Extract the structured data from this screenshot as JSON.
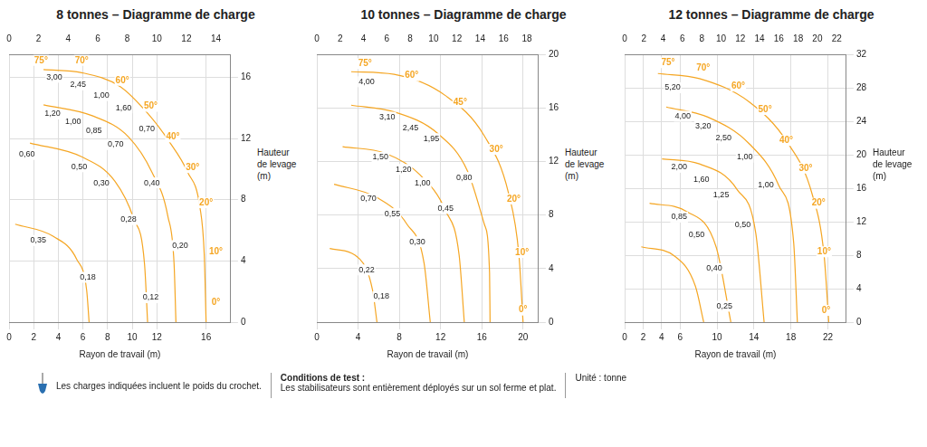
{
  "chart_data": [
    {
      "type": "line",
      "title": "8 tonnes – Diagramme de charge",
      "xlabel": "Rayon de travail (m)",
      "ylabel": "Hauteur de levage (m)",
      "xlim": [
        0,
        18
      ],
      "xticks": [
        0,
        2,
        4,
        6,
        8,
        10,
        12,
        16
      ],
      "x2lim": [
        0,
        15
      ],
      "x2ticks": [
        0,
        2,
        4,
        6,
        8,
        10,
        12,
        14
      ],
      "ylim": [
        0,
        17.5
      ],
      "yticks": [
        0,
        4,
        8,
        12,
        16
      ],
      "grid": true,
      "color": "#f5a623",
      "series": [
        {
          "x": [
            2.8,
            5.9,
            9.0,
            11.3,
            13.0,
            14.5,
            15.5,
            15.85,
            16
          ],
          "values": [
            16.5,
            16.3,
            15.4,
            13.6,
            11.8,
            9.8,
            7.5,
            4.4,
            0
          ]
        },
        {
          "x": [
            2.8,
            6.7,
            9.7,
            11.6,
            12.9,
            13.4,
            13.55
          ],
          "values": [
            14.2,
            13.5,
            12.1,
            9.8,
            6.9,
            3.8,
            0
          ]
        },
        {
          "x": [
            1.7,
            5.9,
            8.6,
            10.1,
            11.0,
            11.25
          ],
          "values": [
            11.7,
            10.8,
            9.2,
            6.8,
            3.8,
            0
          ]
        },
        {
          "x": [
            0.5,
            3.6,
            5.5,
            6.3,
            6.5
          ],
          "values": [
            6.4,
            5.6,
            4.1,
            2.1,
            0
          ]
        }
      ],
      "angles": {
        "x": [
          2.6,
          5.9,
          9.2,
          11.5,
          13.3,
          14.9,
          16.0,
          16.8,
          16.8
        ],
        "y": [
          17.1,
          17.1,
          15.8,
          14.1,
          12.1,
          10.1,
          7.8,
          4.6,
          1.3
        ],
        "values": [
          75,
          70,
          60,
          50,
          40,
          30,
          20,
          10,
          0
        ],
        "value_labels": [
          "75°",
          "70°",
          "60°",
          "50°",
          "40°",
          "30°",
          "20°",
          "10°",
          "0°"
        ]
      },
      "loads": {
        "x": [
          3.68,
          5.6,
          7.5,
          9.3,
          11.2,
          3.52,
          5.2,
          6.9,
          8.65,
          11.6,
          1.46,
          5.7,
          7.5,
          9.7,
          13.9,
          2.37,
          6.4,
          11.5
        ],
        "y": [
          16.0,
          15.5,
          14.8,
          14.0,
          12.6,
          13.6,
          13.1,
          12.5,
          11.6,
          9.1,
          10.95,
          10.15,
          9.1,
          6.7,
          5.0,
          5.33,
          2.93,
          1.6
        ],
        "values": [
          3,
          2.45,
          1,
          1.6,
          0.7,
          1.2,
          1,
          0.85,
          0.7,
          0.4,
          0.6,
          0.5,
          0.3,
          0.28,
          0.2,
          0.35,
          0.18,
          0.12
        ],
        "value_labels": [
          "3,00",
          "2,45",
          "1,00",
          "1,60",
          "0,70",
          "1,20",
          "1,00",
          "0,85",
          "0,70",
          "0,40",
          "0,60",
          "0,50",
          "0,30",
          "0,28",
          "0,20",
          "0,35",
          "0,18",
          "0,12"
        ]
      }
    },
    {
      "type": "line",
      "title": "10 tonnes – Diagramme de charge",
      "xlabel": "Rayon de travail (m)",
      "ylabel": "Hauteur de levage (m)",
      "xlim": [
        0,
        21.5
      ],
      "xticks": [
        0,
        4,
        8,
        12,
        16,
        20
      ],
      "x2lim": [
        0,
        19
      ],
      "x2ticks": [
        0,
        2,
        4,
        6,
        8,
        10,
        12,
        14,
        16,
        18
      ],
      "ylim": [
        0,
        20
      ],
      "yticks": [
        0,
        4,
        8,
        12,
        16,
        20
      ],
      "grid": true,
      "color": "#f5a623",
      "series": [
        {
          "x": [
            3.33,
            7.5,
            12.5,
            16.25,
            18.6,
            19.6,
            20
          ],
          "values": [
            18.7,
            18.5,
            16.9,
            13.9,
            9.6,
            5.0,
            0
          ]
        },
        {
          "x": [
            3.33,
            7.5,
            11.7,
            14.6,
            16.25,
            16.75,
            16.8
          ],
          "values": [
            16.2,
            15.7,
            14.1,
            11.3,
            7.3,
            3.7,
            0
          ]
        },
        {
          "x": [
            2.5,
            6.67,
            10,
            12.5,
            13.8,
            14.3
          ],
          "values": [
            13.1,
            12.6,
            11.0,
            8.3,
            5.0,
            0
          ]
        },
        {
          "x": [
            1.67,
            5.83,
            8.75,
            10.4,
            11
          ],
          "values": [
            10.3,
            9.3,
            7.3,
            4.4,
            0
          ]
        },
        {
          "x": [
            1.25,
            4.17,
            5.4,
            5.83
          ],
          "values": [
            5.5,
            4.7,
            2.4,
            0
          ]
        }
      ],
      "angles": {
        "x": [
          4.67,
          9.2,
          13.9,
          17.4,
          19.1,
          19.9,
          20
        ],
        "y": [
          19.3,
          18.4,
          16.4,
          12.9,
          9.2,
          5.2,
          0.9
        ],
        "values": [
          75,
          60,
          45,
          30,
          20,
          10,
          0
        ],
        "value_labels": [
          "75°",
          "60°",
          "45°",
          "30°",
          "20°",
          "10°",
          "0°"
        ]
      },
      "loads": {
        "x": [
          4.83,
          6.83,
          9.08,
          11.1,
          6.17,
          8.4,
          10.25,
          14.3,
          12.5,
          5.0,
          7.33,
          9.75,
          4.83,
          6.25
        ],
        "y": [
          17.95,
          15.3,
          14.5,
          13.7,
          12.3,
          11.4,
          10.4,
          10.8,
          8.5,
          9.2,
          8.1,
          6.0,
          3.9,
          1.9
        ],
        "values": [
          4,
          3.1,
          2.45,
          1.95,
          1.5,
          1.2,
          1,
          0.8,
          0.45,
          0.7,
          0.55,
          0.3,
          0.22,
          0.18
        ],
        "value_labels": [
          "4,00",
          "3,10",
          "2,45",
          "1,95",
          "1,50",
          "1,20",
          "1,00",
          "0,80",
          "0,45",
          "0,70",
          "0,55",
          "0,30",
          "0,22",
          "0,18"
        ]
      }
    },
    {
      "type": "line",
      "title": "12 tonnes – Diagramme de charge",
      "xlabel": "Rayon de travail (m)",
      "ylabel": "Hauteur de levage (m)",
      "xlim": [
        0,
        24
      ],
      "xticks": [
        0,
        2,
        4,
        6,
        10,
        14,
        18,
        22
      ],
      "x2lim": [
        0,
        23
      ],
      "x2ticks": [
        0,
        2,
        4,
        6,
        8,
        10,
        12,
        14,
        16,
        18,
        20,
        22
      ],
      "ylim": [
        0,
        32
      ],
      "yticks": [
        0,
        4,
        8,
        12,
        16,
        20,
        24,
        28,
        32
      ],
      "grid": true,
      "color": "#f5a623",
      "series": [
        {
          "x": [
            3.6,
            8.1,
            13.5,
            17.6,
            20.3,
            21.6,
            22.1
          ],
          "values": [
            29.7,
            29.1,
            26.3,
            21.5,
            15.3,
            7.9,
            0
          ]
        },
        {
          "x": [
            4.5,
            9.0,
            13.5,
            16.7,
            18.3,
            18.7
          ],
          "values": [
            25.7,
            24.5,
            21.3,
            16.3,
            9.5,
            0
          ]
        },
        {
          "x": [
            4.05,
            8.1,
            12.2,
            14.2,
            15.1
          ],
          "values": [
            19.5,
            18.9,
            15.8,
            10.6,
            0
          ]
        },
        {
          "x": [
            2.7,
            6.75,
            9.9,
            11.5
          ],
          "values": [
            14.2,
            13.2,
            9.0,
            0
          ]
        },
        {
          "x": [
            1.8,
            5.4,
            7.66,
            8.56
          ],
          "values": [
            9.0,
            7.9,
            4.3,
            0
          ]
        }
      ],
      "angles": {
        "x": [
          4.7,
          8.5,
          12.3,
          15.2,
          17.5,
          19.6,
          21.0,
          21.6,
          21.8
        ],
        "y": [
          31.0,
          30.3,
          28.2,
          25.4,
          21.7,
          18.4,
          14.2,
          8.4,
          1.4
        ],
        "values": [
          75,
          70,
          60,
          50,
          40,
          30,
          20,
          10,
          0
        ],
        "value_labels": [
          "75°",
          "70°",
          "60°",
          "50°",
          "40°",
          "30°",
          "20°",
          "10°",
          "0°"
        ]
      },
      "loads": {
        "x": [
          5.2,
          6.3,
          8.5,
          10.7,
          13.0,
          15.3,
          5.9,
          8.3,
          10.45,
          12.8,
          5.9,
          7.8,
          9.7,
          10.8
        ],
        "y": [
          28.0,
          24.6,
          23.4,
          22.0,
          19.7,
          16.4,
          18.5,
          17.05,
          15.2,
          11.6,
          12.55,
          10.4,
          6.4,
          1.9
        ],
        "values": [
          5.2,
          4,
          3.2,
          2.5,
          1,
          1,
          2,
          1.6,
          1.25,
          0.5,
          0.85,
          0.5,
          0.4,
          0.25
        ],
        "value_labels": [
          "5,20",
          "4,00",
          "3,20",
          "2,50",
          "1,00",
          "1,00",
          "2,00",
          "1,60",
          "1,25",
          "0,50",
          "0,85",
          "0,50",
          "0,40",
          "0,25"
        ]
      }
    }
  ],
  "footer": {
    "note": "Les charges indiquées incluent le poids du crochet.",
    "conditions_title": "Conditions de test :",
    "conditions": "Les stabilisateurs sont entièrement déployés sur un sol ferme et plat.",
    "unit": "Unité : tonne"
  }
}
